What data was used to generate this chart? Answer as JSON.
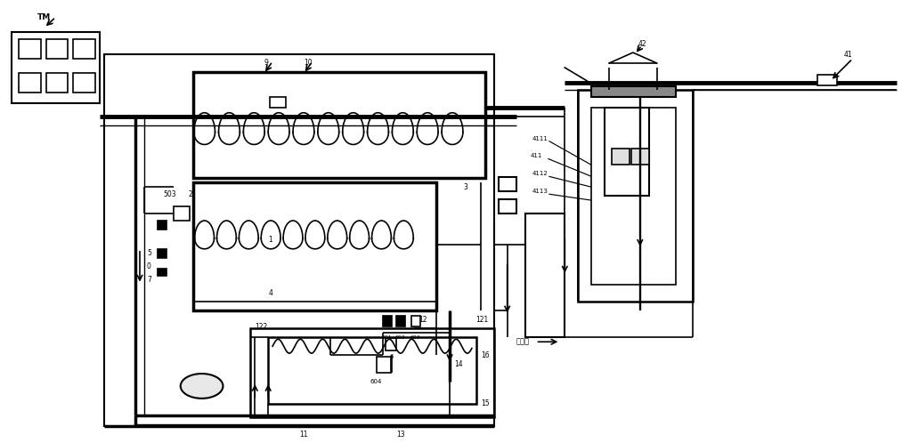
{
  "bg_color": "#ffffff",
  "lc": "#000000",
  "lw": 1.2,
  "tlw": 2.5,
  "fig_w": 10.22,
  "fig_h": 4.98,
  "dpi": 100
}
